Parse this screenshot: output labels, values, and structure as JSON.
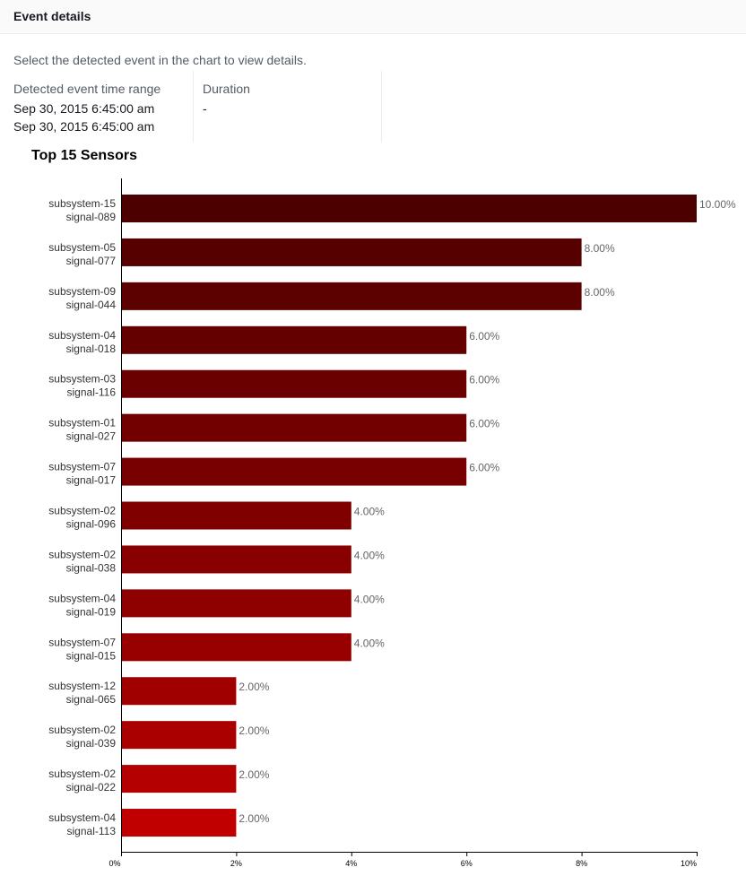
{
  "header": {
    "title": "Event details"
  },
  "instruction": "Select the detected event in the chart to view details.",
  "details": {
    "time_range_label": "Detected event time range",
    "time_range_start": "Sep 30, 2015 6:45:00 am",
    "time_range_end": "Sep 30, 2015 6:45:00 am",
    "duration_label": "Duration",
    "duration_value": "-"
  },
  "chart_data": {
    "type": "bar",
    "orientation": "horizontal",
    "title": "Top 15 Sensors",
    "categories": [
      [
        "subsystem-15",
        "signal-089"
      ],
      [
        "subsystem-05",
        "signal-077"
      ],
      [
        "subsystem-09",
        "signal-044"
      ],
      [
        "subsystem-04",
        "signal-018"
      ],
      [
        "subsystem-03",
        "signal-116"
      ],
      [
        "subsystem-01",
        "signal-027"
      ],
      [
        "subsystem-07",
        "signal-017"
      ],
      [
        "subsystem-02",
        "signal-096"
      ],
      [
        "subsystem-02",
        "signal-038"
      ],
      [
        "subsystem-04",
        "signal-019"
      ],
      [
        "subsystem-07",
        "signal-015"
      ],
      [
        "subsystem-12",
        "signal-065"
      ],
      [
        "subsystem-02",
        "signal-039"
      ],
      [
        "subsystem-02",
        "signal-022"
      ],
      [
        "subsystem-04",
        "signal-113"
      ]
    ],
    "values": [
      10,
      8,
      8,
      6,
      6,
      6,
      6,
      4,
      4,
      4,
      4,
      2,
      2,
      2,
      2
    ],
    "value_labels": [
      "10.00%",
      "8.00%",
      "8.00%",
      "6.00%",
      "6.00%",
      "6.00%",
      "6.00%",
      "4.00%",
      "4.00%",
      "4.00%",
      "4.00%",
      "2.00%",
      "2.00%",
      "2.00%",
      "2.00%"
    ],
    "xlim": [
      0,
      10
    ],
    "xticks": [
      "0%",
      "2%",
      "4%",
      "6%",
      "8%",
      "10%"
    ],
    "colors": [
      "#4d0000",
      "#570000",
      "#5d0000",
      "#640000",
      "#6b0000",
      "#720000",
      "#790000",
      "#800000",
      "#880000",
      "#8f0000",
      "#980000",
      "#a10000",
      "#aa0000",
      "#b40000",
      "#c00000"
    ],
    "grid": false,
    "legend": "none"
  }
}
